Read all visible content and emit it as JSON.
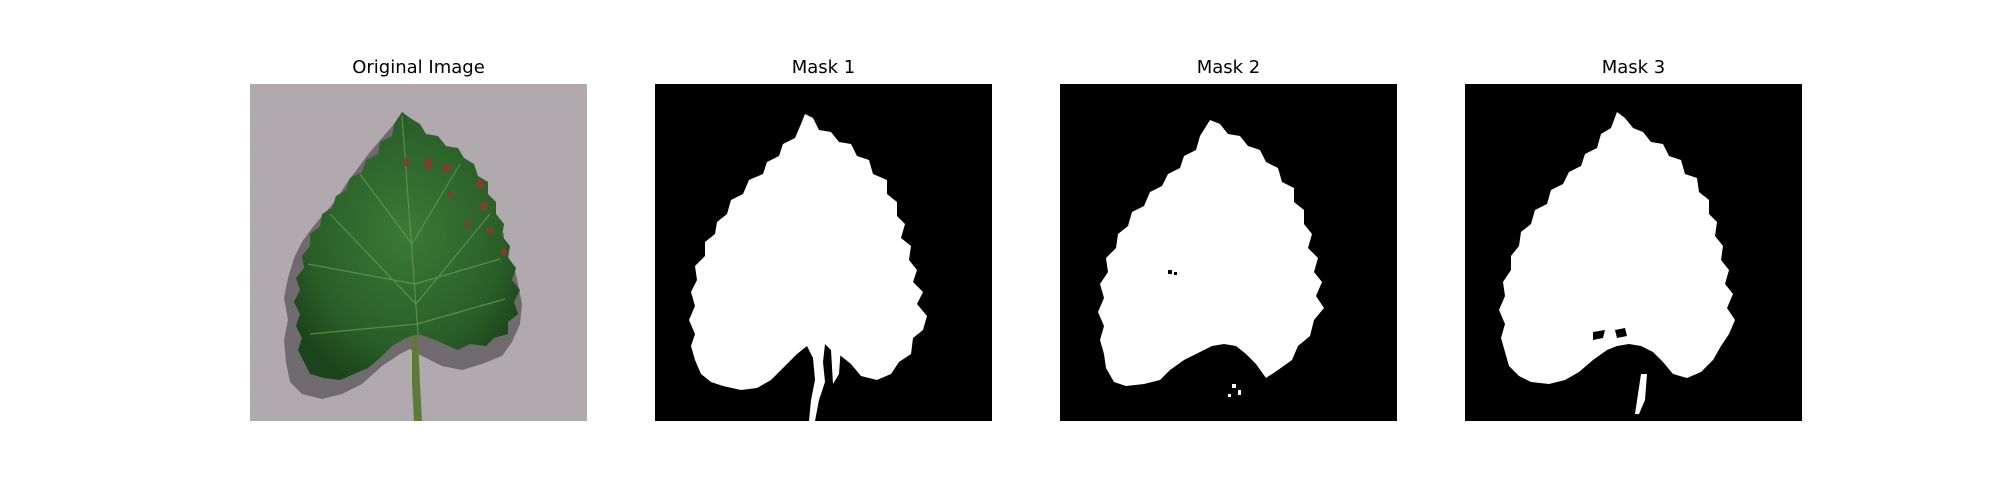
{
  "panels": [
    {
      "title": "Original Image",
      "content": "leaf-photo"
    },
    {
      "title": "Mask 1",
      "content": "binary-mask"
    },
    {
      "title": "Mask 2",
      "content": "binary-mask"
    },
    {
      "title": "Mask 3",
      "content": "binary-mask"
    }
  ],
  "colors": {
    "background": "#b4aeb2",
    "leaf": "#2f6a2d",
    "leaf_dark": "#1f4d1f",
    "lesion": "#8a3a2f",
    "mask_fg": "#ffffff",
    "mask_bg": "#000000"
  }
}
